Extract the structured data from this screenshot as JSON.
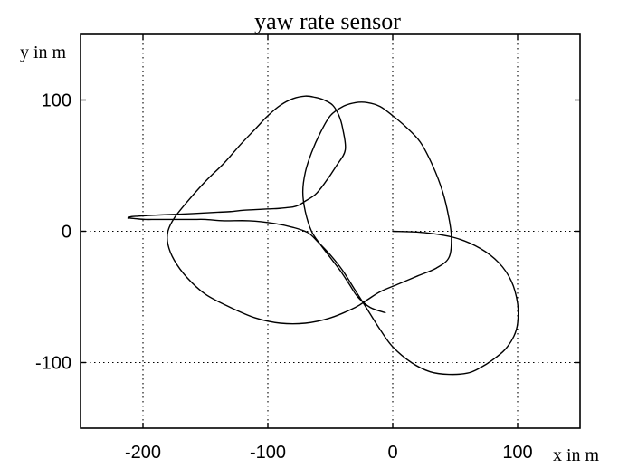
{
  "chart_data": {
    "type": "line",
    "title": "yaw rate sensor",
    "xlabel": "x in m",
    "ylabel": "y in m",
    "xlim": [
      -250,
      150
    ],
    "ylim": [
      -150,
      150
    ],
    "x_ticks": [
      -200,
      -100,
      0,
      100
    ],
    "x_tick_labels": [
      "-200",
      "-100",
      "0",
      "100"
    ],
    "y_ticks": [
      -100,
      0,
      100
    ],
    "y_tick_labels": [
      "-100",
      "0",
      "100"
    ],
    "grid": true,
    "grid_style": "dotted",
    "legend": "none",
    "line_color": "#000000",
    "series": [
      {
        "x": [
          0,
          25,
          50,
          70,
          85,
          95,
          100,
          100,
          97,
          90,
          80,
          70,
          60,
          45,
          30,
          15,
          0,
          -10,
          -20,
          -30,
          -40,
          -50,
          -60,
          -68,
          -80,
          -95,
          -115,
          -135,
          -150,
          -160,
          -170,
          -180,
          -190,
          -198,
          -205,
          -210,
          -212,
          -210,
          -204,
          -195,
          -185,
          -172,
          -160,
          -150,
          -140,
          -130,
          -120,
          -110,
          -100,
          -95,
          -90,
          -85,
          -80,
          -75,
          -70,
          -62,
          -55,
          -45,
          -38,
          -40,
          -43,
          -48,
          -55,
          -62,
          -70,
          -80,
          -90,
          -100,
          -110,
          -122,
          -135,
          -150,
          -165,
          -175,
          -180,
          -180,
          -175,
          -165,
          -150,
          -130,
          -110,
          -90,
          -70,
          -50,
          -30,
          -20,
          -10,
          5,
          20,
          35,
          45,
          47,
          45,
          40,
          32,
          22,
          10,
          0,
          -10,
          -20,
          -30,
          -40,
          -50,
          -58,
          -65,
          -70,
          -72,
          -70,
          -65,
          -58,
          -50,
          -42,
          -35,
          -28,
          -18,
          -6
        ],
        "y": [
          0,
          -1,
          -5,
          -13,
          -24,
          -38,
          -55,
          -70,
          -80,
          -90,
          -98,
          -104,
          -108,
          -109,
          -107,
          -100,
          -88,
          -75,
          -60,
          -45,
          -30,
          -18,
          -8,
          -1,
          3,
          6,
          8,
          8,
          9,
          9,
          9,
          9,
          9,
          9,
          9.5,
          10,
          10,
          11,
          11.5,
          12,
          12.5,
          13,
          13.5,
          14,
          14.5,
          15,
          16,
          16.5,
          17,
          17.2,
          17.5,
          18,
          18.5,
          20,
          23,
          28,
          36,
          50,
          62,
          78,
          88,
          96,
          100,
          102,
          103,
          101,
          96,
          88,
          78,
          66,
          52,
          38,
          22,
          10,
          0,
          -10,
          -22,
          -35,
          -48,
          -58,
          -66,
          -70,
          -70,
          -66,
          -58,
          -52,
          -46,
          -40,
          -34,
          -28,
          -20,
          -5,
          10,
          30,
          50,
          68,
          80,
          88,
          95,
          98,
          98,
          95,
          88,
          75,
          60,
          45,
          30,
          15,
          0,
          -10,
          -20,
          -30,
          -40,
          -50,
          -58,
          -62
        ]
      }
    ]
  }
}
